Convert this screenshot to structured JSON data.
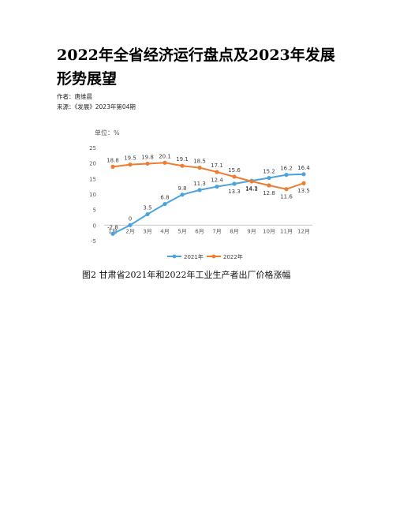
{
  "document": {
    "title": "2022年全省经济运行盘点及2023年发展形势展望",
    "author_line": "作者：唐维晨",
    "source_line": "来源：《发展》2023年第04期",
    "figure_caption": "图2  甘肃省2021年和2022年工业生产者出厂价格涨幅"
  },
  "chart_data": {
    "type": "line",
    "unit_label": "单位：%",
    "categories": [
      "1月",
      "2月",
      "3月",
      "4月",
      "5月",
      "6月",
      "7月",
      "8月",
      "9月",
      "10月",
      "11月",
      "12月"
    ],
    "ylim": [
      -5,
      25
    ],
    "yticks": [
      -5,
      0,
      5,
      10,
      15,
      20,
      25
    ],
    "grid": false,
    "legend_position": "bottom",
    "series": [
      {
        "name": "2021年",
        "color": "#4aa3df",
        "values": [
          -2.8,
          0,
          3.5,
          6.8,
          9.8,
          11.3,
          12.4,
          13.3,
          14.3,
          15.2,
          16.2,
          16.4
        ],
        "labels": [
          "-2.8",
          "0",
          "3.5",
          "6.8",
          "9.8",
          "11.3",
          "12.4",
          "13.3",
          "14.3",
          "15.2",
          "16.2",
          "16.4"
        ]
      },
      {
        "name": "2022年",
        "color": "#ed7d31",
        "values": [
          18.8,
          19.5,
          19.8,
          20.1,
          19.1,
          18.5,
          17.1,
          15.6,
          14.1,
          12.8,
          11.6,
          13.5
        ],
        "labels": [
          "18.8",
          "19.5",
          "19.8",
          "20.1",
          "19.1",
          "18.5",
          "17.1",
          "15.6",
          "14.1",
          "12.8",
          "11.6",
          "13.5"
        ]
      }
    ]
  }
}
